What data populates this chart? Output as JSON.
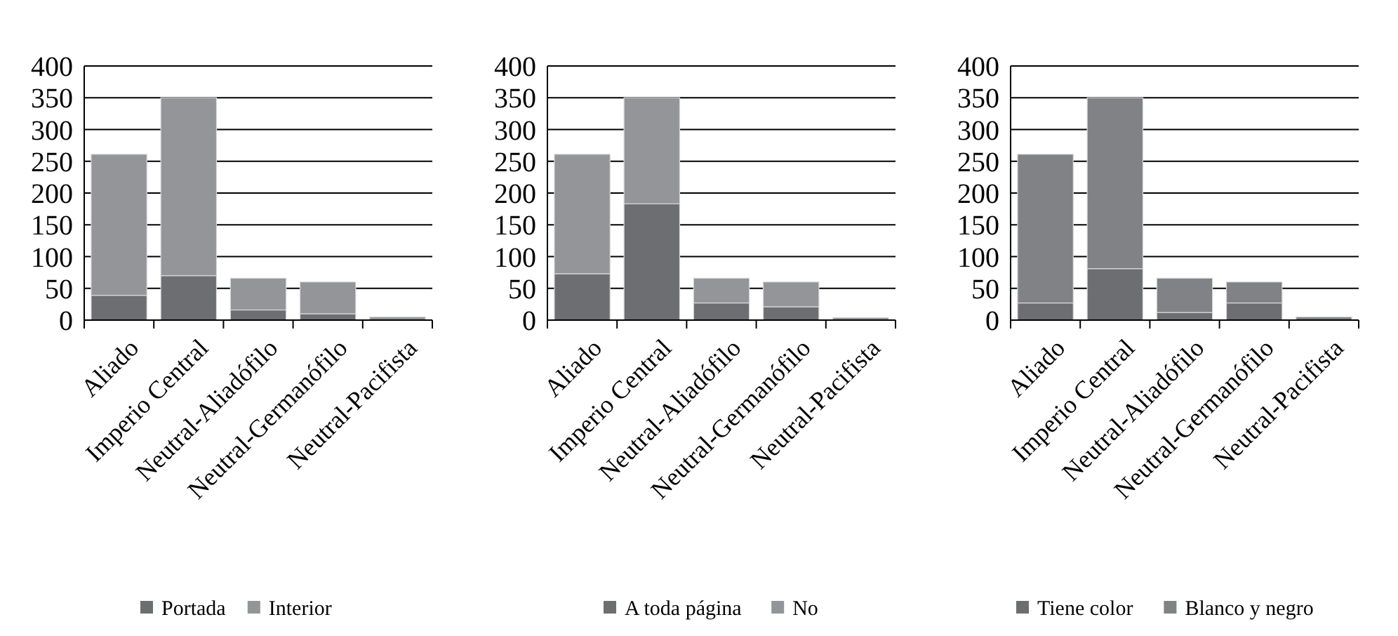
{
  "chart_data": [
    {
      "type": "bar",
      "stacked": true,
      "categories": [
        "Aliado",
        "Imperio Central",
        "Neutral-Aliadófilo",
        "Neutral-Germanófilo",
        "Neutral-Pacifista"
      ],
      "ylim": [
        0,
        400
      ],
      "yticks": [
        0,
        50,
        100,
        150,
        200,
        250,
        300,
        350,
        400
      ],
      "grid": "y",
      "legend": "bottom",
      "series": [
        {
          "name": "Portada",
          "color": "#6d6e71",
          "values": [
            39,
            70,
            16,
            10,
            null
          ]
        },
        {
          "name": "Interior",
          "color": "#939598",
          "values": [
            222,
            280,
            50,
            50,
            5
          ]
        }
      ]
    },
    {
      "type": "bar",
      "stacked": true,
      "categories": [
        "Aliado",
        "Imperio Central",
        "Neutral-Aliadófilo",
        "Neutral-Germanófilo",
        "Neutral-Pacifista"
      ],
      "ylim": [
        0,
        400
      ],
      "yticks": [
        0,
        50,
        100,
        150,
        200,
        250,
        300,
        350,
        400
      ],
      "grid": "y",
      "legend": "bottom",
      "series": [
        {
          "name": "A toda página",
          "color": "#6d6e71",
          "values": [
            73,
            183,
            27,
            21,
            null
          ]
        },
        {
          "name": "No",
          "color": "#939598",
          "values": [
            188,
            167,
            39,
            39,
            4
          ]
        }
      ]
    },
    {
      "type": "bar",
      "stacked": true,
      "categories": [
        "Aliado",
        "Imperio Central",
        "Neutral-Aliadófilo",
        "Neutral-Germanófilo",
        "Neutral-Pacifista"
      ],
      "ylim": [
        0,
        400
      ],
      "yticks": [
        0,
        50,
        100,
        150,
        200,
        250,
        300,
        350,
        400
      ],
      "grid": "y",
      "legend": "bottom",
      "series": [
        {
          "name": "Tiene color",
          "color": "#6d6e71",
          "values": [
            27,
            81,
            12,
            27,
            null
          ]
        },
        {
          "name": "Blanco y negro",
          "color": "#808285",
          "values": [
            234,
            269,
            54,
            33,
            5
          ]
        }
      ]
    }
  ]
}
